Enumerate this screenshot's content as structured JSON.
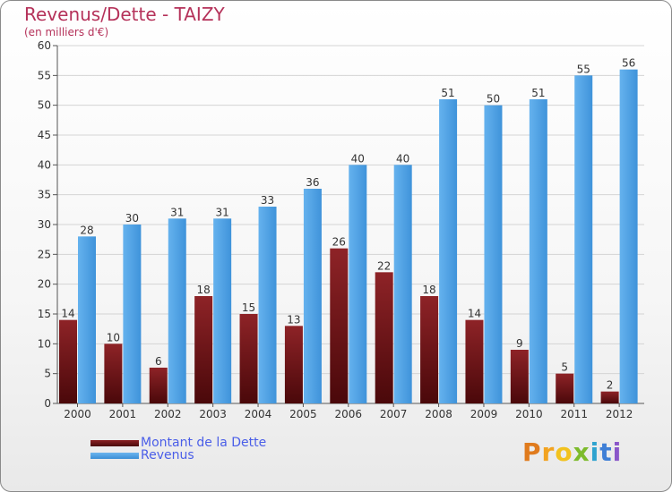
{
  "chart_data": {
    "type": "bar",
    "title": "Revenus/Dette - TAIZY",
    "subtitle": "(en milliers d'€)",
    "categories": [
      "2000",
      "2001",
      "2002",
      "2003",
      "2004",
      "2005",
      "2006",
      "2007",
      "2008",
      "2009",
      "2010",
      "2011",
      "2012"
    ],
    "series": [
      {
        "name": "Montant de la Dette",
        "color": "#6b1214",
        "values": [
          14,
          10,
          6,
          18,
          15,
          13,
          26,
          22,
          18,
          14,
          9,
          5,
          2
        ]
      },
      {
        "name": "Revenus",
        "color": "#4da3e6",
        "values": [
          28,
          30,
          31,
          31,
          33,
          36,
          40,
          40,
          51,
          50,
          51,
          55,
          56
        ]
      }
    ],
    "xlabel": "",
    "ylabel": "",
    "ylim": [
      0,
      60
    ],
    "yticks": [
      0,
      5,
      10,
      15,
      20,
      25,
      30,
      35,
      40,
      45,
      50,
      55,
      60
    ],
    "grid": true,
    "legend_position": "bottom-left"
  },
  "logo": {
    "text": "Proxiti",
    "letters": [
      "P",
      "r",
      "o",
      "x",
      "i",
      "t",
      "i"
    ]
  }
}
